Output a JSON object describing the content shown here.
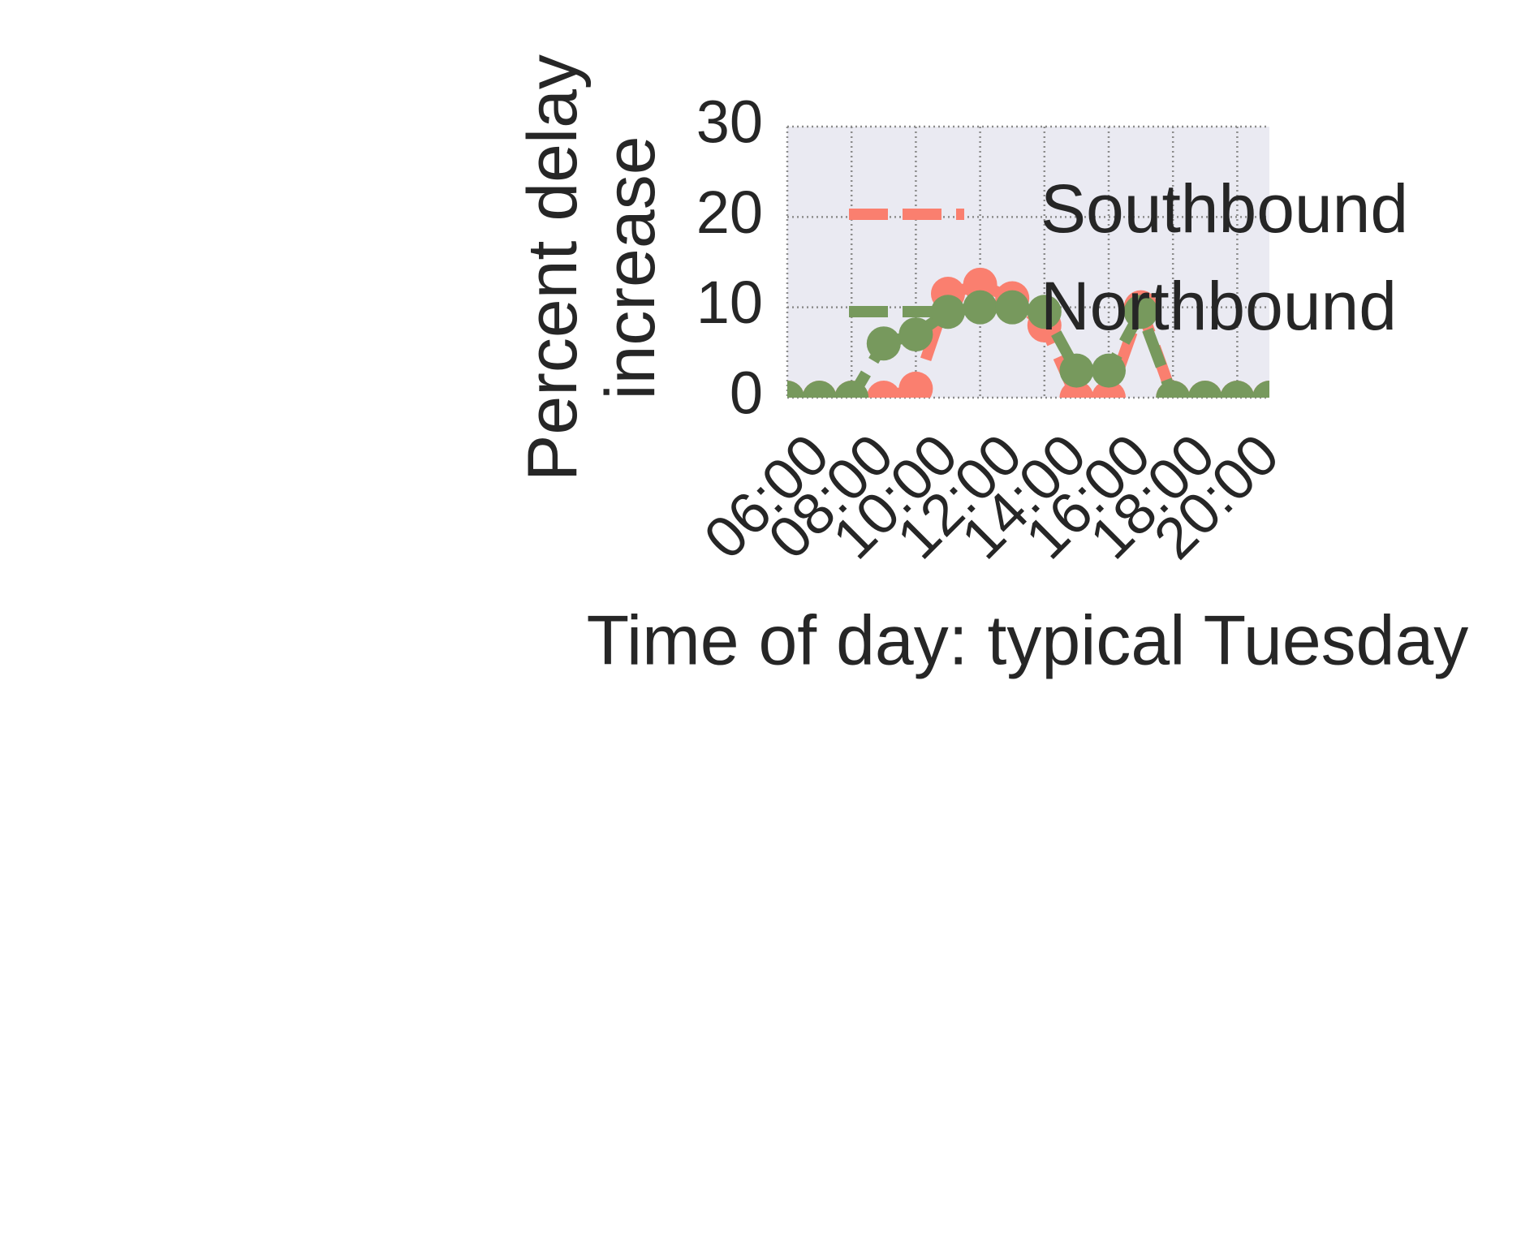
{
  "chart_data": {
    "type": "line",
    "xlabel": "Time of day: typical Tuesday",
    "ylabel": "Percent delay\nincrease",
    "x": [
      6,
      7,
      8,
      9,
      10,
      11,
      12,
      13,
      14,
      15,
      16,
      17,
      18,
      19,
      20,
      21
    ],
    "series": [
      {
        "name": "Southbound",
        "color": "#fa7f6f",
        "values": [
          0,
          0,
          0,
          0,
          1,
          11.5,
          12.5,
          11,
          8,
          0,
          0,
          10,
          0,
          0,
          0,
          0
        ]
      },
      {
        "name": "Northbound",
        "color": "#77995d",
        "values": [
          0,
          0,
          0,
          6,
          7,
          9.5,
          10,
          10,
          9.5,
          3,
          3,
          9.5,
          0,
          0,
          0,
          0
        ]
      }
    ],
    "xlim": [
      6,
      21
    ],
    "xticks": [
      {
        "value": 6,
        "label": "06:00"
      },
      {
        "value": 8,
        "label": "08:00"
      },
      {
        "value": 10,
        "label": "10:00"
      },
      {
        "value": 12,
        "label": "12:00"
      },
      {
        "value": 14,
        "label": "14:00"
      },
      {
        "value": 16,
        "label": "16:00"
      },
      {
        "value": 18,
        "label": "18:00"
      },
      {
        "value": 20,
        "label": "20:00"
      }
    ],
    "ylim": [
      0,
      30
    ],
    "yticks": [
      0,
      10,
      20,
      30
    ],
    "grid": true,
    "legend": "upper right"
  }
}
